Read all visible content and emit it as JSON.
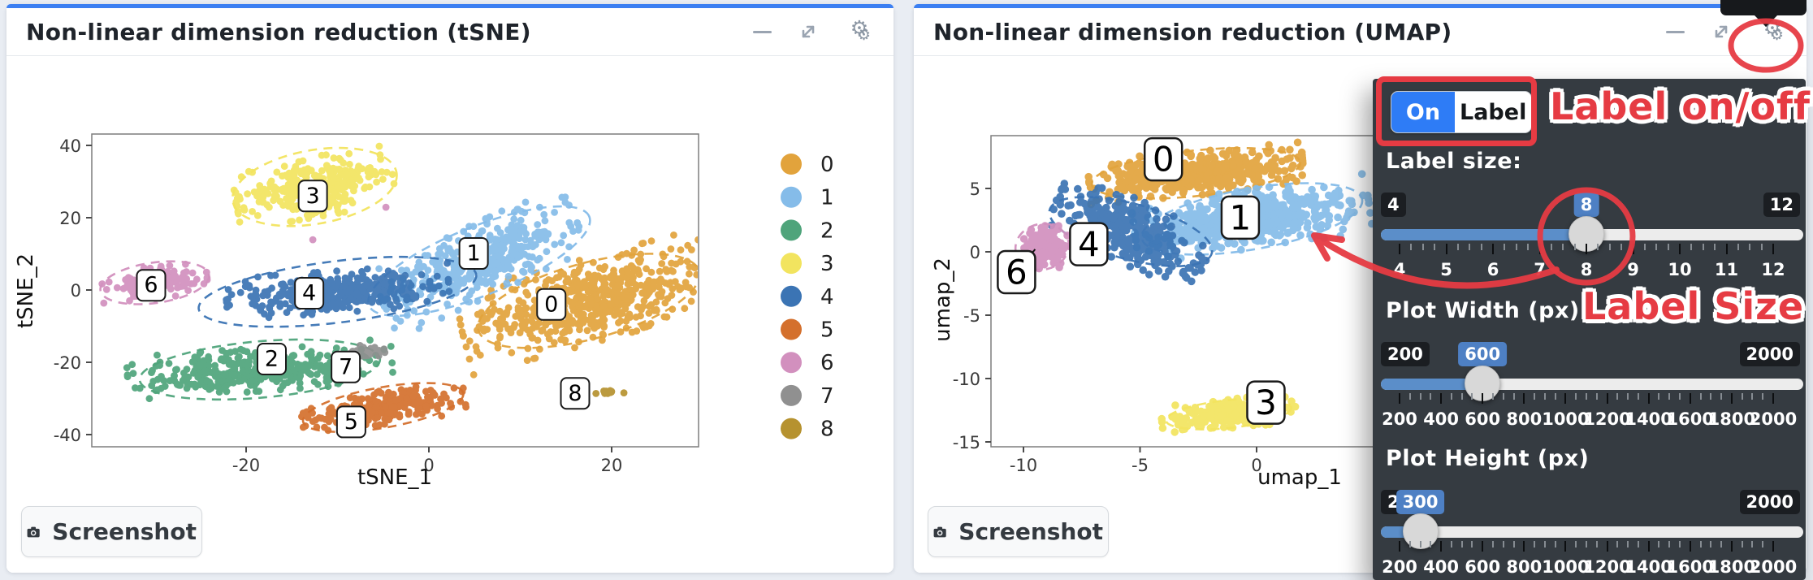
{
  "page": {
    "background": "#e9edf3",
    "accent_color": "#3b7ff2"
  },
  "annotation": {
    "color": "#E63B43",
    "label_onoff_text": "Label on/off",
    "label_size_text": "Label Size"
  },
  "cards": {
    "tsne": {
      "title": "Non-linear dimension reduction (tSNE)",
      "screenshot_label": "Screenshot",
      "window_icons": [
        "minimize",
        "expand",
        "settings"
      ]
    },
    "umap": {
      "title": "Non-linear dimension reduction (UMAP)",
      "screenshot_label": "Screenshot",
      "window_icons": [
        "minimize",
        "expand",
        "settings"
      ]
    }
  },
  "settings_panel": {
    "toggle": {
      "on_label": "On",
      "label_label": "Label"
    },
    "sliders": [
      {
        "label": "Label size:",
        "min": 4,
        "max": 12,
        "value": 8,
        "min_label": "4",
        "max_label": "12",
        "value_label": "8",
        "ticks": [
          "4",
          "5",
          "6",
          "7",
          "8",
          "9",
          "10",
          "11",
          "12"
        ]
      },
      {
        "label": "Plot Width (px)",
        "min": 200,
        "max": 2000,
        "value": 600,
        "min_label": "200",
        "max_label": "2000",
        "value_label": "600",
        "ticks": [
          "200",
          "400",
          "600",
          "800",
          "1000",
          "1200",
          "1400",
          "1600",
          "1800",
          "2000"
        ]
      },
      {
        "label": "Plot Height (px)",
        "min": 200,
        "max": 2000,
        "value": 300,
        "min_label": "200",
        "max_label": "2000",
        "value_label": "300",
        "ticks": [
          "200",
          "400",
          "600",
          "800",
          "1000",
          "1200",
          "1400",
          "1600",
          "1800",
          "2000"
        ]
      }
    ]
  },
  "chart_data": [
    {
      "id": "tsne",
      "type": "scatter",
      "title": "Non-linear dimension reduction (tSNE)",
      "xlabel": "tSNE_1",
      "ylabel": "tSNE_2",
      "xlim": [
        -36.9,
        29.5
      ],
      "ylim": [
        -43.4,
        43.1
      ],
      "xticks": [
        -20,
        0,
        20
      ],
      "yticks": [
        40,
        20,
        0,
        -20,
        -40
      ],
      "grid": false,
      "legend_position": "right",
      "legend": [
        {
          "label": "0",
          "color": "#E2A33C"
        },
        {
          "label": "1",
          "color": "#85BCE9"
        },
        {
          "label": "2",
          "color": "#4FA47B"
        },
        {
          "label": "3",
          "color": "#F2E45F"
        },
        {
          "label": "4",
          "color": "#3B74B4"
        },
        {
          "label": "5",
          "color": "#D4702D"
        },
        {
          "label": "6",
          "color": "#D290BE"
        },
        {
          "label": "7",
          "color": "#909090"
        },
        {
          "label": "8",
          "color": "#B6922F"
        }
      ],
      "clusters": [
        {
          "label": "0",
          "color": "#E2A33C",
          "center": [
            17.5,
            -3
          ],
          "sigma": [
            6.2,
            5.0
          ],
          "rot": -15,
          "n": 600,
          "ellipse": [
            12.5,
            10.5
          ],
          "erot": -15,
          "label_at": [
            13.4,
            -4
          ]
        },
        {
          "label": "1",
          "color": "#85BCE9",
          "center": [
            5.5,
            8
          ],
          "sigma": [
            5.0,
            4.3
          ],
          "rot": -25,
          "n": 430,
          "ellipse": [
            13.0,
            9.5
          ],
          "erot": -22,
          "label_at": [
            4.9,
            10.1
          ]
        },
        {
          "label": "2",
          "color": "#4FA47B",
          "center": [
            -18.5,
            -22
          ],
          "sigma": [
            6.3,
            2.6
          ],
          "rot": -4,
          "n": 390,
          "ellipse": [
            13.2,
            7.8
          ],
          "erot": -5,
          "label_at": [
            -17.2,
            -19.1
          ]
        },
        {
          "label": "3",
          "color": "#F2E45F",
          "center": [
            -12.5,
            28.5
          ],
          "sigma": [
            3.8,
            3.6
          ],
          "rot": -10,
          "n": 300,
          "ellipse": [
            9.1,
            10.2
          ],
          "erot": -10,
          "label_at": [
            -12.7,
            26
          ]
        },
        {
          "label": "4",
          "color": "#3B74B4",
          "center": [
            -10,
            -0.5
          ],
          "sigma": [
            5.3,
            2.5
          ],
          "rot": -4,
          "n": 380,
          "ellipse": [
            15.3,
            8.5
          ],
          "erot": -7,
          "label_at": [
            -13.1,
            -0.9
          ]
        },
        {
          "label": "5",
          "color": "#D4702D",
          "center": [
            -5,
            -32.5
          ],
          "sigma": [
            3.9,
            2.0
          ],
          "rot": -8,
          "n": 260,
          "ellipse": [
            8.9,
            5.6
          ],
          "erot": -10,
          "label_at": [
            -8.5,
            -36.5
          ]
        },
        {
          "label": "6",
          "color": "#D290BE",
          "center": [
            -30,
            2
          ],
          "sigma": [
            2.5,
            1.9
          ],
          "rot": -5,
          "n": 140,
          "ellipse": [
            6.0,
            5.6
          ],
          "erot": -8,
          "label_at": [
            -30.4,
            1.3
          ],
          "extra_points": [
            [
              -12.7,
              13.9
            ],
            [
              -4.7,
              22.9
            ]
          ]
        },
        {
          "label": "7",
          "color": "#909090",
          "center": [
            -6.6,
            -17.3
          ],
          "sigma": [
            1.1,
            0.9
          ],
          "rot": 0,
          "n": 35,
          "ellipse": null,
          "erot": 0,
          "label_at": [
            -9.1,
            -21.3
          ]
        },
        {
          "label": "8",
          "color": "#B6922F",
          "center": [
            19.5,
            -28
          ],
          "sigma": [
            0.9,
            0.5
          ],
          "rot": 0,
          "n": 12,
          "ellipse": null,
          "erot": 0,
          "label_at": [
            16,
            -28.6
          ]
        }
      ]
    },
    {
      "id": "umap",
      "type": "scatter",
      "title": "Non-linear dimension reduction (UMAP)",
      "xlabel": "umap_1",
      "ylabel": "umap_2",
      "xlim": [
        -11.4,
        5.3
      ],
      "ylim": [
        -15.4,
        9.2
      ],
      "xticks": [
        -10,
        -5,
        0
      ],
      "yticks": [
        5,
        0,
        -5,
        -10,
        -15
      ],
      "grid": false,
      "legend_position": null,
      "legend": null,
      "clusters": [
        {
          "label": "0",
          "color": "#E2A33C",
          "center": [
            -2.6,
            6.2
          ],
          "sigma": [
            2.0,
            0.75
          ],
          "rot": -5,
          "n": 430,
          "ellipse": [
            4.5,
            1.8
          ],
          "erot": -6,
          "label_at": [
            -4.0,
            7.3
          ]
        },
        {
          "label": "1",
          "color": "#85BCE9",
          "center": [
            -0.2,
            2.6
          ],
          "sigma": [
            2.2,
            1.0
          ],
          "rot": -8,
          "n": 520,
          "ellipse": [
            4.8,
            2.4
          ],
          "erot": -10,
          "label_at": [
            -0.7,
            2.7
          ]
        },
        {
          "label": "4",
          "color": "#3B74B4",
          "center": [
            -5.4,
            1.6
          ],
          "sigma": [
            1.5,
            1.1
          ],
          "rot": 25,
          "n": 320,
          "ellipse": [
            3.6,
            2.2
          ],
          "erot": 15,
          "label_at": [
            -7.2,
            0.6
          ]
        },
        {
          "label": "6",
          "color": "#D290BE",
          "center": [
            -9.2,
            0.4
          ],
          "sigma": [
            0.5,
            0.8
          ],
          "rot": -10,
          "n": 130,
          "ellipse": [
            1.15,
            1.8
          ],
          "erot": -12,
          "label_at": [
            -10.3,
            -1.6
          ],
          "leader": [
            -9.5,
            0.2
          ]
        },
        {
          "label": "3",
          "color": "#F2E45F",
          "center": [
            -1.2,
            -12.8
          ],
          "sigma": [
            1.25,
            0.5
          ],
          "rot": -6,
          "n": 250,
          "ellipse": [
            2.7,
            1.1
          ],
          "erot": -6,
          "label_at": [
            0.4,
            -11.9
          ]
        }
      ]
    }
  ]
}
